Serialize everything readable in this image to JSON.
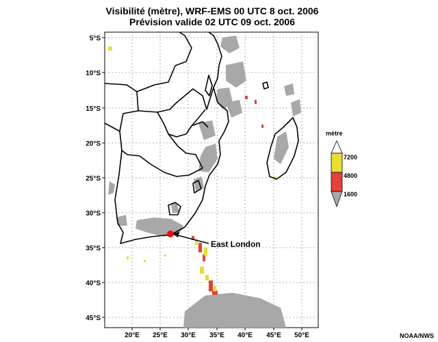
{
  "title": {
    "line1": "Visibilité (mètre), WRF-EMS 00 UTC 8 oct. 2006",
    "line2": "Prévision valide 02 UTC 09 oct. 2006"
  },
  "y_ticks": [
    "5°S",
    "10°S",
    "15°S",
    "20°S",
    "25°S",
    "30°S",
    "35°S",
    "40°S",
    "45°S"
  ],
  "x_ticks": [
    "20°E",
    "25°E",
    "30°E",
    "35°E",
    "40°E",
    "45°E",
    "50°E"
  ],
  "legend": {
    "title": "mètre",
    "entries": [
      {
        "label": "7200",
        "color": "#e8e02a"
      },
      {
        "label": "4800",
        "color": "#e8403a"
      },
      {
        "label": "1600",
        "color": "#a8a8a8"
      }
    ]
  },
  "marker": {
    "label": "East London",
    "color": "#ff0000"
  },
  "credit": "NOAA/NWS",
  "colors": {
    "fog_gray": "#a8a8a8",
    "yellow": "#e8e02a",
    "red": "#e8403a",
    "border": "#000000"
  }
}
